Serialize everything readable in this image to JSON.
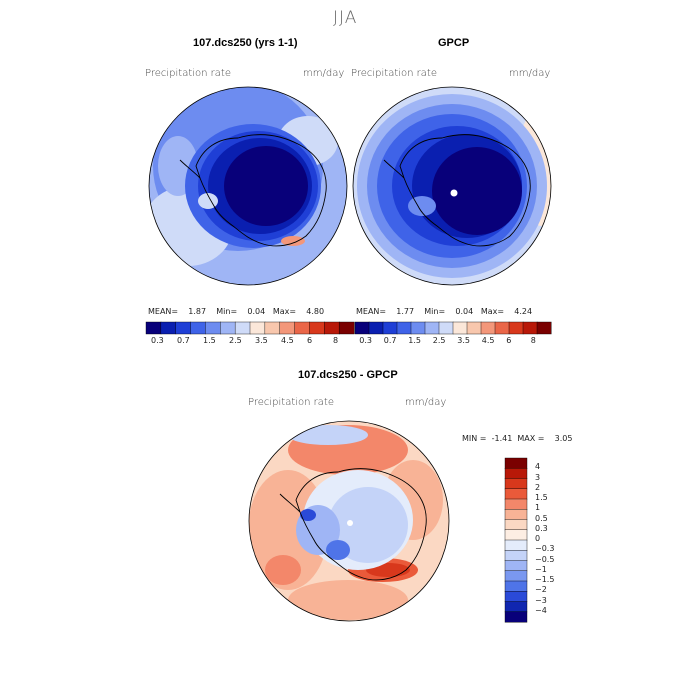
{
  "season": "JJA",
  "panels": [
    {
      "title": "107.dcs250 (yrs 1-1)",
      "variable": "Precipitation rate",
      "units": "mm/day",
      "mean_label": "MEAN=",
      "mean": "1.87",
      "min_label": "Min=",
      "min": "0.04",
      "max_label": "Max=",
      "max": "4.80"
    },
    {
      "title": "GPCP",
      "variable": "Precipitation rate",
      "units": "mm/day",
      "mean_label": "MEAN=",
      "mean": "1.77",
      "min_label": "Min=",
      "min": "0.04",
      "max_label": "Max=",
      "max": "4.24"
    }
  ],
  "colorbar": {
    "ticks": [
      "0.3",
      "0.7",
      "1.5",
      "2.5",
      "3.5",
      "4.5",
      "6",
      "8"
    ],
    "colors": [
      "#08007a",
      "#0a1fb0",
      "#1f3fd6",
      "#3f63e8",
      "#6d8cf0",
      "#9fb5f5",
      "#cfdbf8",
      "#fbe7d9",
      "#f8c7ad",
      "#f3977a",
      "#ea6648",
      "#d8381c",
      "#b81808",
      "#7a0000"
    ]
  },
  "difference": {
    "title": "107.dcs250 - GPCP",
    "variable": "Precipitation rate",
    "units": "mm/day",
    "min_label": "MIN =",
    "min": "-1.41",
    "max_label": "MAX =",
    "max": "3.05",
    "colorbar_labels": [
      "4",
      "3",
      "2",
      "1.5",
      "1",
      "0.5",
      "0.3",
      "0",
      "−0.3",
      "−0.5",
      "−1",
      "−1.5",
      "−2",
      "−3",
      "−4"
    ],
    "colorbar_colors": [
      "#7a0000",
      "#b81808",
      "#d8381c",
      "#ea5a3a",
      "#f3876a",
      "#f8b396",
      "#fbd8c3",
      "#fdeee3",
      "#e4ecfb",
      "#c4d3f8",
      "#9fb5f5",
      "#7a98f0",
      "#4f74e8",
      "#2a4ad8",
      "#1026b0",
      "#08007a"
    ]
  },
  "chart_data": {
    "type": "heatmap",
    "plots": [
      {
        "title": "107.dcs250 (yrs 1-1)",
        "variable": "Precipitation rate",
        "units": "mm/day",
        "mean": 1.87,
        "min": 0.04,
        "max": 4.8,
        "levels": [
          0.3,
          0.7,
          1.5,
          2.5,
          3.5,
          4.5,
          6,
          8
        ]
      },
      {
        "title": "GPCP",
        "variable": "Precipitation rate",
        "units": "mm/day",
        "mean": 1.77,
        "min": 0.04,
        "max": 4.24,
        "levels": [
          0.3,
          0.7,
          1.5,
          2.5,
          3.5,
          4.5,
          6,
          8
        ]
      },
      {
        "title": "107.dcs250 - GPCP",
        "variable": "Precipitation rate",
        "units": "mm/day",
        "min": -1.41,
        "max": 3.05,
        "levels": [
          -4,
          -3,
          -2,
          -1.5,
          -1,
          -0.5,
          -0.3,
          0,
          0.3,
          0.5,
          1,
          1.5,
          2,
          3,
          4
        ]
      }
    ]
  }
}
